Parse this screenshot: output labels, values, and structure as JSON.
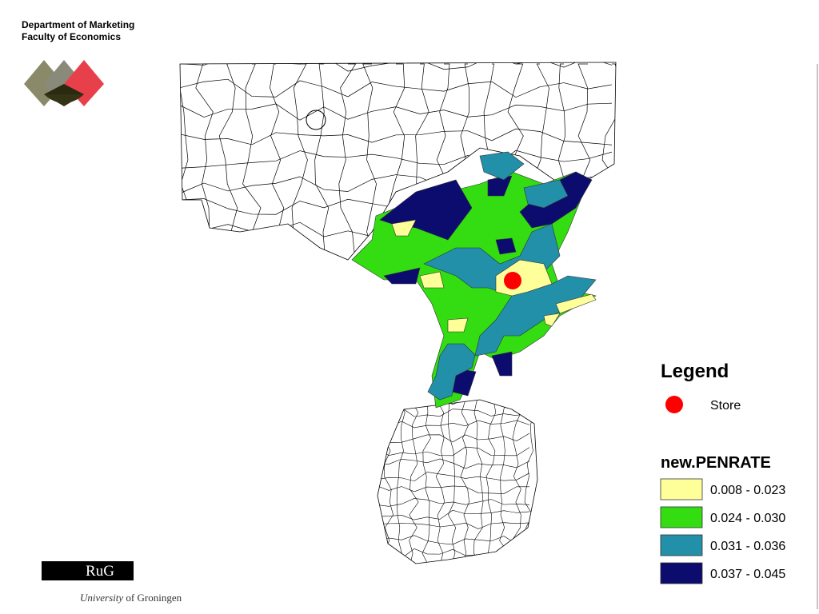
{
  "header": {
    "line1": "Department of Marketing",
    "line2": "Faculty of Economics"
  },
  "legend": {
    "title": "Legend",
    "store": {
      "label": "Store",
      "color": "#ff0000"
    },
    "classification": {
      "title": "new.PENRATE",
      "classes": [
        {
          "label": "0.008 - 0.023",
          "color": "#ffff99"
        },
        {
          "label": "0.024 - 0.030",
          "color": "#33dd11"
        },
        {
          "label": "0.031 - 0.036",
          "color": "#2190a8"
        },
        {
          "label": "0.037 - 0.045",
          "color": "#0c0c6e"
        }
      ]
    }
  },
  "footer": {
    "logo": "RuG",
    "university": "University",
    "city": "of Groningen"
  }
}
